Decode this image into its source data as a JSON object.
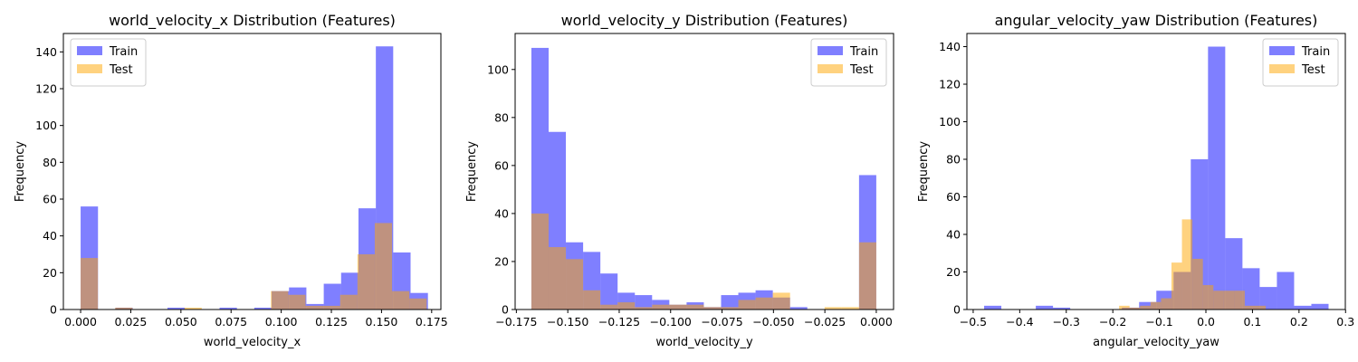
{
  "chart_data": [
    {
      "type": "bar",
      "title": "world_velocity_x Distribution (Features)",
      "xlabel": "world_velocity_x",
      "ylabel": "Frequency",
      "xlim": [
        -0.0086,
        0.1796
      ],
      "ylim": [
        0,
        150
      ],
      "xticks": [
        0.0,
        0.025,
        0.05,
        0.075,
        0.1,
        0.125,
        0.15,
        0.175
      ],
      "xtick_labels": [
        "0.000",
        "0.025",
        "0.050",
        "0.075",
        "0.100",
        "0.125",
        "0.150",
        "0.175"
      ],
      "yticks": [
        0,
        20,
        40,
        60,
        80,
        100,
        120,
        140
      ],
      "legend": "top-left",
      "series": [
        {
          "name": "Train",
          "color": "#0000ff",
          "opacity": 0.5,
          "bin_start": 0.0,
          "bin_width": 0.008657,
          "values": [
            56,
            0,
            1,
            0,
            0,
            1,
            0,
            0,
            1,
            0,
            1,
            10,
            12,
            3,
            14,
            20,
            55,
            143,
            31,
            9
          ]
        },
        {
          "name": "Test",
          "color": "#ffa500",
          "opacity": 0.5,
          "bin_start": 0.0,
          "bin_width": 0.008625,
          "values": [
            28,
            0,
            1,
            0,
            0,
            0,
            1,
            0,
            0,
            0,
            0,
            10,
            8,
            2,
            2,
            8,
            30,
            47,
            10,
            6
          ]
        }
      ]
    },
    {
      "type": "bar",
      "title": "world_velocity_y Distribution (Features)",
      "xlabel": "world_velocity_y",
      "ylabel": "Frequency",
      "xlim": [
        -0.1756,
        0.0084
      ],
      "ylim": [
        0,
        115
      ],
      "xticks": [
        -0.175,
        -0.15,
        -0.125,
        -0.1,
        -0.075,
        -0.05,
        -0.025,
        0.0
      ],
      "xtick_labels": [
        "−0.175",
        "−0.150",
        "−0.125",
        "−0.100",
        "−0.075",
        "−0.050",
        "−0.025",
        "0.000"
      ],
      "yticks": [
        0,
        20,
        40,
        60,
        80,
        100
      ],
      "legend": "top-right",
      "series": [
        {
          "name": "Train",
          "color": "#0000ff",
          "opacity": 0.5,
          "bin_start": -0.1677,
          "bin_width": 0.008385,
          "values": [
            109,
            74,
            28,
            24,
            15,
            7,
            6,
            4,
            2,
            3,
            1,
            6,
            7,
            8,
            5,
            1,
            0,
            0,
            0,
            56
          ]
        },
        {
          "name": "Test",
          "color": "#ffa500",
          "opacity": 0.5,
          "bin_start": -0.1677,
          "bin_width": 0.008385,
          "values": [
            40,
            26,
            21,
            8,
            2,
            3,
            1,
            2,
            2,
            2,
            1,
            1,
            4,
            5,
            7,
            0,
            0,
            1,
            1,
            28
          ]
        }
      ]
    },
    {
      "type": "bar",
      "title": "angular_velocity_yaw Distribution (Features)",
      "xlabel": "angular_velocity_yaw",
      "ylabel": "Frequency",
      "xlim": [
        -0.5135,
        0.2995
      ],
      "ylim": [
        0,
        147
      ],
      "xticks": [
        -0.5,
        -0.4,
        -0.3,
        -0.2,
        -0.1,
        0.0,
        0.1,
        0.2,
        0.3
      ],
      "xtick_labels": [
        "−0.5",
        "−0.4",
        "−0.3",
        "−0.2",
        "−0.1",
        "0.0",
        "0.1",
        "0.2",
        "0.3"
      ],
      "yticks": [
        0,
        20,
        40,
        60,
        80,
        100,
        120,
        140
      ],
      "legend": "top-right",
      "series": [
        {
          "name": "Train",
          "color": "#0000ff",
          "opacity": 0.5,
          "bin_start": -0.4765,
          "bin_width": 0.037,
          "values": [
            2,
            0,
            0,
            2,
            1,
            0,
            0,
            0,
            1,
            4,
            10,
            20,
            80,
            140,
            38,
            22,
            12,
            20,
            2,
            3
          ]
        },
        {
          "name": "Test",
          "color": "#ffa500",
          "opacity": 0.5,
          "bin_start": -0.1865,
          "bin_width": 0.0225,
          "values": [
            2,
            1,
            2,
            4,
            6,
            25,
            48,
            27,
            13,
            10,
            10,
            10,
            2,
            2
          ]
        }
      ]
    }
  ]
}
